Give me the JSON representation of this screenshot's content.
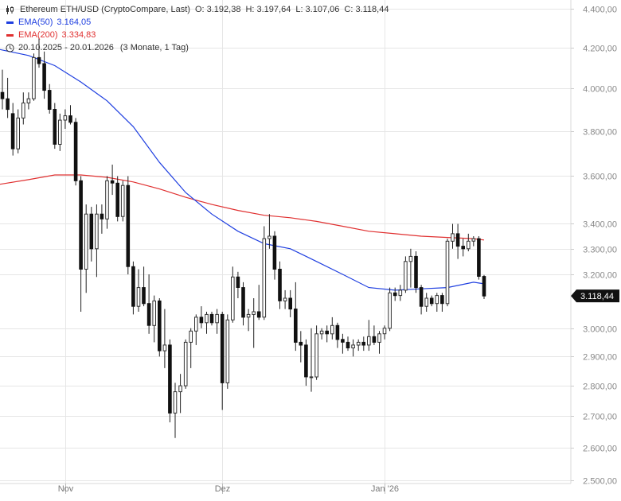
{
  "header": {
    "title": "Ethereum ETH/USD (CryptoCompare, Last)",
    "open": "O: 3.192,38",
    "high": "H: 3.197,64",
    "low": "L: 3.107,06",
    "close": "C: 3.118,44"
  },
  "legend": {
    "ema50_label": "EMA(50)",
    "ema50_value": "3.164,05",
    "ema200_label": "EMA(200)",
    "ema200_value": "3.334,83",
    "range": "20.10.2025 - 20.01.2026",
    "range_note": "(3 Monate, 1 Tag)"
  },
  "colors": {
    "up": "#333333",
    "down": "#111111",
    "ema50": "#1f3fe0",
    "ema200": "#e03030",
    "grid": "#e6e6e6",
    "axis_text": "#888888",
    "last_badge": "#111111"
  },
  "icons": {
    "chart_type": "candlestick-icon",
    "range": "clock-icon"
  },
  "chart_data": {
    "type": "candlestick",
    "title": "Ethereum ETH/USD (CryptoCompare, Last)",
    "y_scale": "log",
    "ylim": [
      2500,
      4400
    ],
    "grid": true,
    "y_ticks": [
      2500,
      2600,
      2700,
      2800,
      2900,
      3000,
      3200,
      3300,
      3400,
      3600,
      3800,
      4000,
      4200,
      4400
    ],
    "y_tick_labels": [
      "2.500,00",
      "2.600,00",
      "2.700,00",
      "2.800,00",
      "2.900,00",
      "3.000,00",
      "3.200,00",
      "3.300,00",
      "3.400,00",
      "3.600,00",
      "3.800,00",
      "4.000,00",
      "4.200,00",
      "4.400,00"
    ],
    "x_range": [
      "2025-10-20",
      "2026-01-20"
    ],
    "x_ticks": [
      {
        "date": "2025-11-01",
        "label": "Nov"
      },
      {
        "date": "2025-12-01",
        "label": "Dez"
      },
      {
        "date": "2026-01-01",
        "label": "Jan '26"
      }
    ],
    "last_price_label": "3.118,44",
    "candles": [
      {
        "d": "2025-10-20",
        "o": 3980,
        "h": 4090,
        "l": 3900,
        "c": 3950
      },
      {
        "d": "2025-10-21",
        "o": 3950,
        "h": 4050,
        "l": 3860,
        "c": 3900
      },
      {
        "d": "2025-10-22",
        "o": 3880,
        "h": 3930,
        "l": 3690,
        "c": 3720
      },
      {
        "d": "2025-10-23",
        "o": 3720,
        "h": 3900,
        "l": 3700,
        "c": 3860
      },
      {
        "d": "2025-10-24",
        "o": 3860,
        "h": 3980,
        "l": 3830,
        "c": 3930
      },
      {
        "d": "2025-10-25",
        "o": 3930,
        "h": 3980,
        "l": 3900,
        "c": 3950
      },
      {
        "d": "2025-10-26",
        "o": 3950,
        "h": 4170,
        "l": 3940,
        "c": 4150
      },
      {
        "d": "2025-10-27",
        "o": 4150,
        "h": 4250,
        "l": 4100,
        "c": 4120
      },
      {
        "d": "2025-10-28",
        "o": 4120,
        "h": 4180,
        "l": 3950,
        "c": 3990
      },
      {
        "d": "2025-10-29",
        "o": 3990,
        "h": 4020,
        "l": 3880,
        "c": 3900
      },
      {
        "d": "2025-10-30",
        "o": 3900,
        "h": 3930,
        "l": 3720,
        "c": 3740
      },
      {
        "d": "2025-10-31",
        "o": 3740,
        "h": 3880,
        "l": 3710,
        "c": 3850
      },
      {
        "d": "2025-11-01",
        "o": 3850,
        "h": 3900,
        "l": 3810,
        "c": 3870
      },
      {
        "d": "2025-11-02",
        "o": 3870,
        "h": 3920,
        "l": 3830,
        "c": 3840
      },
      {
        "d": "2025-11-03",
        "o": 3840,
        "h": 3860,
        "l": 3560,
        "c": 3580
      },
      {
        "d": "2025-11-04",
        "o": 3580,
        "h": 3600,
        "l": 3060,
        "c": 3220
      },
      {
        "d": "2025-11-05",
        "o": 3220,
        "h": 3480,
        "l": 3130,
        "c": 3440
      },
      {
        "d": "2025-11-06",
        "o": 3440,
        "h": 3470,
        "l": 3250,
        "c": 3300
      },
      {
        "d": "2025-11-07",
        "o": 3300,
        "h": 3480,
        "l": 3190,
        "c": 3440
      },
      {
        "d": "2025-11-08",
        "o": 3440,
        "h": 3480,
        "l": 3360,
        "c": 3420
      },
      {
        "d": "2025-11-09",
        "o": 3420,
        "h": 3600,
        "l": 3380,
        "c": 3580
      },
      {
        "d": "2025-11-10",
        "o": 3580,
        "h": 3650,
        "l": 3520,
        "c": 3570
      },
      {
        "d": "2025-11-11",
        "o": 3570,
        "h": 3600,
        "l": 3410,
        "c": 3430
      },
      {
        "d": "2025-11-12",
        "o": 3430,
        "h": 3580,
        "l": 3410,
        "c": 3560
      },
      {
        "d": "2025-11-13",
        "o": 3560,
        "h": 3600,
        "l": 3200,
        "c": 3230
      },
      {
        "d": "2025-11-14",
        "o": 3230,
        "h": 3250,
        "l": 3050,
        "c": 3080
      },
      {
        "d": "2025-11-15",
        "o": 3080,
        "h": 3220,
        "l": 3060,
        "c": 3150
      },
      {
        "d": "2025-11-16",
        "o": 3150,
        "h": 3230,
        "l": 3080,
        "c": 3090
      },
      {
        "d": "2025-11-17",
        "o": 3090,
        "h": 3200,
        "l": 2980,
        "c": 3010
      },
      {
        "d": "2025-11-18",
        "o": 3010,
        "h": 3120,
        "l": 2950,
        "c": 3100
      },
      {
        "d": "2025-11-19",
        "o": 3100,
        "h": 3110,
        "l": 2900,
        "c": 2920
      },
      {
        "d": "2025-11-20",
        "o": 2920,
        "h": 3070,
        "l": 2860,
        "c": 2940
      },
      {
        "d": "2025-11-21",
        "o": 2940,
        "h": 2960,
        "l": 2680,
        "c": 2710
      },
      {
        "d": "2025-11-22",
        "o": 2710,
        "h": 2810,
        "l": 2630,
        "c": 2780
      },
      {
        "d": "2025-11-23",
        "o": 2780,
        "h": 2840,
        "l": 2710,
        "c": 2800
      },
      {
        "d": "2025-11-24",
        "o": 2800,
        "h": 2960,
        "l": 2790,
        "c": 2950
      },
      {
        "d": "2025-11-25",
        "o": 2950,
        "h": 3000,
        "l": 2860,
        "c": 2990
      },
      {
        "d": "2025-11-26",
        "o": 2990,
        "h": 3050,
        "l": 2940,
        "c": 3040
      },
      {
        "d": "2025-11-27",
        "o": 3040,
        "h": 3080,
        "l": 3000,
        "c": 3020
      },
      {
        "d": "2025-11-28",
        "o": 3020,
        "h": 3060,
        "l": 2980,
        "c": 3050
      },
      {
        "d": "2025-11-29",
        "o": 3050,
        "h": 3060,
        "l": 3010,
        "c": 3020
      },
      {
        "d": "2025-11-30",
        "o": 3020,
        "h": 3070,
        "l": 2980,
        "c": 3050
      },
      {
        "d": "2025-12-01",
        "o": 3050,
        "h": 3060,
        "l": 2720,
        "c": 2810
      },
      {
        "d": "2025-12-02",
        "o": 2810,
        "h": 3050,
        "l": 2790,
        "c": 3030
      },
      {
        "d": "2025-12-03",
        "o": 3030,
        "h": 3230,
        "l": 3020,
        "c": 3190
      },
      {
        "d": "2025-12-04",
        "o": 3190,
        "h": 3210,
        "l": 3110,
        "c": 3150
      },
      {
        "d": "2025-12-05",
        "o": 3150,
        "h": 3170,
        "l": 3010,
        "c": 3040
      },
      {
        "d": "2025-12-06",
        "o": 3040,
        "h": 3070,
        "l": 2990,
        "c": 3050
      },
      {
        "d": "2025-12-07",
        "o": 3050,
        "h": 3110,
        "l": 2930,
        "c": 3060
      },
      {
        "d": "2025-12-08",
        "o": 3060,
        "h": 3160,
        "l": 3030,
        "c": 3040
      },
      {
        "d": "2025-12-09",
        "o": 3040,
        "h": 3390,
        "l": 3030,
        "c": 3340
      },
      {
        "d": "2025-12-10",
        "o": 3340,
        "h": 3440,
        "l": 3300,
        "c": 3350
      },
      {
        "d": "2025-12-11",
        "o": 3350,
        "h": 3370,
        "l": 3180,
        "c": 3220
      },
      {
        "d": "2025-12-12",
        "o": 3220,
        "h": 3250,
        "l": 3070,
        "c": 3100
      },
      {
        "d": "2025-12-13",
        "o": 3100,
        "h": 3140,
        "l": 3070,
        "c": 3110
      },
      {
        "d": "2025-12-14",
        "o": 3110,
        "h": 3140,
        "l": 3040,
        "c": 3070
      },
      {
        "d": "2025-12-15",
        "o": 3070,
        "h": 3170,
        "l": 2920,
        "c": 2950
      },
      {
        "d": "2025-12-16",
        "o": 2950,
        "h": 2990,
        "l": 2880,
        "c": 2940
      },
      {
        "d": "2025-12-17",
        "o": 2940,
        "h": 2960,
        "l": 2800,
        "c": 2830
      },
      {
        "d": "2025-12-18",
        "o": 2830,
        "h": 3000,
        "l": 2780,
        "c": 2830
      },
      {
        "d": "2025-12-19",
        "o": 2830,
        "h": 3010,
        "l": 2820,
        "c": 2980
      },
      {
        "d": "2025-12-20",
        "o": 2980,
        "h": 3000,
        "l": 2960,
        "c": 2990
      },
      {
        "d": "2025-12-21",
        "o": 2990,
        "h": 3010,
        "l": 2950,
        "c": 2980
      },
      {
        "d": "2025-12-22",
        "o": 2980,
        "h": 3040,
        "l": 2960,
        "c": 3010
      },
      {
        "d": "2025-12-23",
        "o": 3010,
        "h": 3020,
        "l": 2930,
        "c": 2960
      },
      {
        "d": "2025-12-24",
        "o": 2960,
        "h": 2980,
        "l": 2910,
        "c": 2950
      },
      {
        "d": "2025-12-25",
        "o": 2950,
        "h": 2970,
        "l": 2920,
        "c": 2930
      },
      {
        "d": "2025-12-26",
        "o": 2930,
        "h": 2960,
        "l": 2900,
        "c": 2940
      },
      {
        "d": "2025-12-27",
        "o": 2940,
        "h": 2960,
        "l": 2920,
        "c": 2950
      },
      {
        "d": "2025-12-28",
        "o": 2950,
        "h": 2970,
        "l": 2920,
        "c": 2940
      },
      {
        "d": "2025-12-29",
        "o": 2940,
        "h": 3030,
        "l": 2920,
        "c": 2970
      },
      {
        "d": "2025-12-30",
        "o": 2970,
        "h": 3010,
        "l": 2940,
        "c": 2950
      },
      {
        "d": "2025-12-31",
        "o": 2950,
        "h": 2990,
        "l": 2910,
        "c": 2980
      },
      {
        "d": "2026-01-01",
        "o": 2980,
        "h": 3010,
        "l": 2960,
        "c": 3000
      },
      {
        "d": "2026-01-02",
        "o": 3000,
        "h": 3150,
        "l": 2990,
        "c": 3130
      },
      {
        "d": "2026-01-03",
        "o": 3130,
        "h": 3150,
        "l": 3100,
        "c": 3120
      },
      {
        "d": "2026-01-04",
        "o": 3120,
        "h": 3160,
        "l": 3100,
        "c": 3140
      },
      {
        "d": "2026-01-05",
        "o": 3140,
        "h": 3270,
        "l": 3130,
        "c": 3250
      },
      {
        "d": "2026-01-06",
        "o": 3250,
        "h": 3300,
        "l": 3150,
        "c": 3270
      },
      {
        "d": "2026-01-07",
        "o": 3270,
        "h": 3290,
        "l": 3130,
        "c": 3150
      },
      {
        "d": "2026-01-08",
        "o": 3150,
        "h": 3160,
        "l": 3050,
        "c": 3080
      },
      {
        "d": "2026-01-09",
        "o": 3080,
        "h": 3130,
        "l": 3060,
        "c": 3110
      },
      {
        "d": "2026-01-10",
        "o": 3110,
        "h": 3120,
        "l": 3080,
        "c": 3090
      },
      {
        "d": "2026-01-11",
        "o": 3090,
        "h": 3130,
        "l": 3060,
        "c": 3120
      },
      {
        "d": "2026-01-12",
        "o": 3120,
        "h": 3130,
        "l": 3060,
        "c": 3090
      },
      {
        "d": "2026-01-13",
        "o": 3090,
        "h": 3340,
        "l": 3080,
        "c": 3330
      },
      {
        "d": "2026-01-14",
        "o": 3330,
        "h": 3400,
        "l": 3300,
        "c": 3360
      },
      {
        "d": "2026-01-15",
        "o": 3360,
        "h": 3400,
        "l": 3260,
        "c": 3310
      },
      {
        "d": "2026-01-16",
        "o": 3310,
        "h": 3340,
        "l": 3270,
        "c": 3300
      },
      {
        "d": "2026-01-17",
        "o": 3300,
        "h": 3360,
        "l": 3290,
        "c": 3330
      },
      {
        "d": "2026-01-18",
        "o": 3330,
        "h": 3350,
        "l": 3310,
        "c": 3340
      },
      {
        "d": "2026-01-19",
        "o": 3340,
        "h": 3350,
        "l": 3180,
        "c": 3192.38
      },
      {
        "d": "2026-01-20",
        "o": 3192.38,
        "h": 3197.64,
        "l": 3107.06,
        "c": 3118.44
      }
    ],
    "series": [
      {
        "name": "EMA(50)",
        "points": [
          [
            "2025-10-20",
            4190
          ],
          [
            "2025-10-25",
            4160
          ],
          [
            "2025-10-30",
            4110
          ],
          [
            "2025-11-04",
            4030
          ],
          [
            "2025-11-09",
            3940
          ],
          [
            "2025-11-14",
            3820
          ],
          [
            "2025-11-19",
            3660
          ],
          [
            "2025-11-24",
            3530
          ],
          [
            "2025-11-29",
            3440
          ],
          [
            "2025-12-04",
            3370
          ],
          [
            "2025-12-09",
            3320
          ],
          [
            "2025-12-14",
            3300
          ],
          [
            "2025-12-19",
            3250
          ],
          [
            "2025-12-24",
            3200
          ],
          [
            "2025-12-29",
            3150
          ],
          [
            "2026-01-03",
            3140
          ],
          [
            "2026-01-08",
            3145
          ],
          [
            "2026-01-13",
            3150
          ],
          [
            "2026-01-18",
            3170
          ],
          [
            "2026-01-20",
            3164.05
          ]
        ]
      },
      {
        "name": "EMA(200)",
        "points": [
          [
            "2025-10-20",
            3565
          ],
          [
            "2025-10-25",
            3585
          ],
          [
            "2025-10-30",
            3605
          ],
          [
            "2025-11-04",
            3605
          ],
          [
            "2025-11-09",
            3595
          ],
          [
            "2025-11-14",
            3575
          ],
          [
            "2025-11-19",
            3545
          ],
          [
            "2025-11-24",
            3510
          ],
          [
            "2025-11-29",
            3480
          ],
          [
            "2025-12-04",
            3455
          ],
          [
            "2025-12-09",
            3435
          ],
          [
            "2025-12-14",
            3425
          ],
          [
            "2025-12-19",
            3410
          ],
          [
            "2025-12-24",
            3390
          ],
          [
            "2025-12-29",
            3370
          ],
          [
            "2026-01-03",
            3360
          ],
          [
            "2026-01-08",
            3350
          ],
          [
            "2026-01-13",
            3345
          ],
          [
            "2026-01-18",
            3340
          ],
          [
            "2026-01-20",
            3334.83
          ]
        ]
      }
    ]
  }
}
